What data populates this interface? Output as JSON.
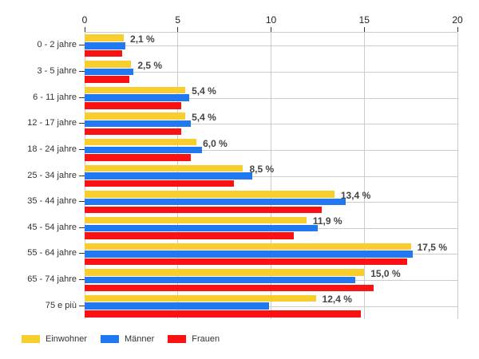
{
  "chart_data": {
    "type": "bar",
    "orientation": "horizontal",
    "title": "",
    "categories": [
      "0 - 2 jahre",
      "3 - 5 jahre",
      "6 - 11 jahre",
      "12 - 17 jahre",
      "18 - 24 jahre",
      "25 - 34 jahre",
      "35 - 44 jahre",
      "45 - 54 jahre",
      "55 - 64 jahre",
      "65 - 74 jahre",
      "75 e più"
    ],
    "series": [
      {
        "name": "Einwohner",
        "color": "#F8CE2F",
        "values": [
          2.1,
          2.5,
          5.4,
          5.4,
          6.0,
          8.5,
          13.4,
          11.9,
          17.5,
          15.0,
          12.4
        ]
      },
      {
        "name": "Männer",
        "color": "#2079F0",
        "values": [
          2.2,
          2.6,
          5.6,
          5.7,
          6.3,
          9.0,
          14.0,
          12.5,
          17.6,
          14.5,
          9.9
        ]
      },
      {
        "name": "Frauen",
        "color": "#FA1111",
        "values": [
          2.0,
          2.4,
          5.2,
          5.2,
          5.7,
          8.0,
          12.7,
          11.2,
          17.3,
          15.5,
          14.8
        ]
      }
    ],
    "bar_labels": [
      "2,1 %",
      "2,5 %",
      "5,4 %",
      "5,4 %",
      "6,0 %",
      "8,5 %",
      "13,4 %",
      "11,9 %",
      "17,5 %",
      "15,0 %",
      "12,4 %"
    ],
    "x_ticks": [
      "0",
      "5",
      "10",
      "15",
      "20"
    ],
    "xlim": [
      0,
      20
    ],
    "grid": true,
    "legend_position": "bottom-left",
    "colors": {
      "gridline": "#CCCCCC",
      "tick": "#333333",
      "axis_text": "#222222",
      "category_text": "#333333",
      "value_label_text": "#444444",
      "legend_text": "#333333",
      "background": "#FFFFFF"
    }
  }
}
